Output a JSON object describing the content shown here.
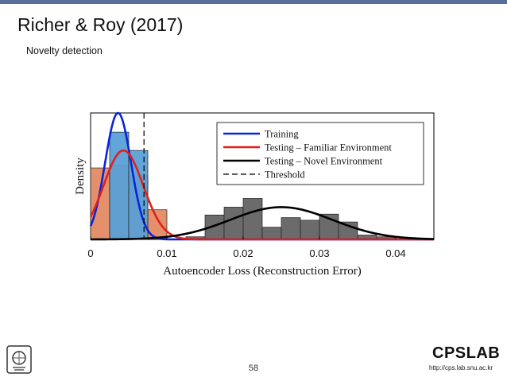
{
  "slide": {
    "title": "Richer & Roy (2017)",
    "subtitle": "Novelty detection",
    "page_number": "58",
    "logo_text": "CPSLAB",
    "logo_url": "http://cps.lab.snu.ac.kr"
  },
  "colors": {
    "training": "#0b24d9",
    "testing_familiar": "#e0201d",
    "testing_novel": "#000000",
    "threshold": "#000000",
    "hist_training": "#5aa0d6",
    "hist_familiar": "#e38a63",
    "hist_novel": "#636363",
    "top_bar": "#5a6e9c"
  },
  "chart_data": {
    "type": "histogram",
    "xlabel": "Autoencoder Loss (Reconstruction Error)",
    "ylabel": "Density",
    "xlim": [
      0,
      0.045
    ],
    "x_ticks": [
      "0",
      "0.01",
      "0.02",
      "0.03",
      "0.04"
    ],
    "x_tick_values": [
      0,
      0.01,
      0.02,
      0.03,
      0.04
    ],
    "ylim": [
      0,
      145
    ],
    "legend_position": "top-right",
    "grid": false,
    "threshold": 0.007,
    "bin_width": 0.0025,
    "series": [
      {
        "name": "Training",
        "histogram": {
          "bins_start": [
            0.0025,
            0.005
          ],
          "density": [
            123,
            102
          ]
        },
        "curve": {
          "mean": 0.0036,
          "std": 0.0017,
          "peak": 145
        }
      },
      {
        "name": "Testing – Familiar Environment",
        "histogram": {
          "bins_start": [
            0.0,
            0.0025,
            0.005,
            0.0075
          ],
          "density": [
            82,
            85,
            73,
            34
          ]
        },
        "curve": {
          "mean": 0.0043,
          "std": 0.0026,
          "peak": 102
        }
      },
      {
        "name": "Testing – Novel Environment",
        "histogram": {
          "bins_start": [
            0.0125,
            0.015,
            0.0175,
            0.02,
            0.0225,
            0.025,
            0.0275,
            0.03,
            0.0325,
            0.035,
            0.0375
          ],
          "density": [
            3,
            28,
            37,
            47,
            14,
            25,
            22,
            29,
            20,
            5,
            3
          ]
        },
        "curve": {
          "mean": 0.025,
          "std": 0.0067,
          "peak": 37
        }
      }
    ],
    "legend": [
      "Training",
      "Testing – Familiar Environment",
      "Testing – Novel Environment",
      "Threshold"
    ]
  }
}
